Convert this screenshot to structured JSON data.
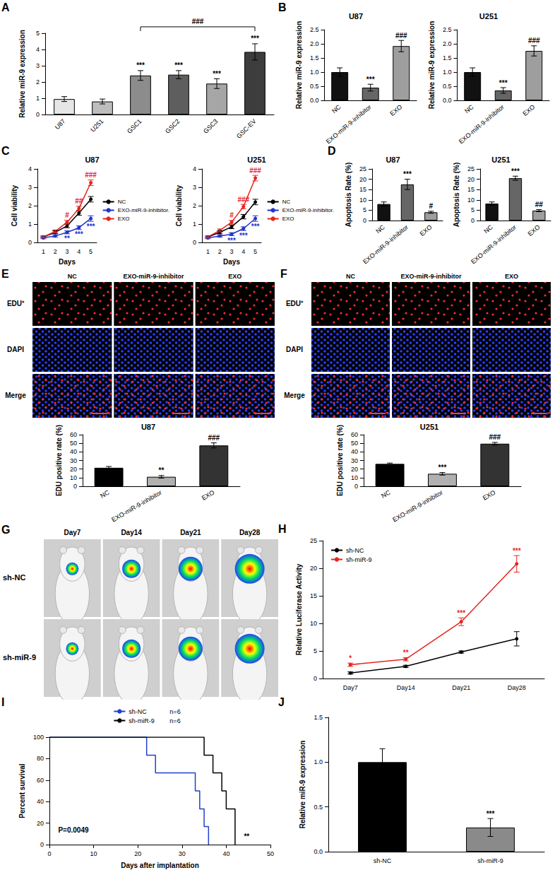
{
  "chart_data": [
    {
      "panel": "A",
      "type": "bar",
      "categories": [
        "U87",
        "U251",
        "GSC1",
        "GSC2",
        "GSC3",
        "GSC-EV"
      ],
      "values": [
        0.95,
        0.8,
        2.4,
        2.45,
        1.9,
        3.85
      ],
      "errors": [
        0.15,
        0.15,
        0.3,
        0.25,
        0.3,
        0.5
      ],
      "significance": [
        null,
        null,
        "***",
        "***",
        "***",
        "***"
      ],
      "bracket": {
        "from": "GSC1",
        "to": "GSC-EV",
        "text": "###"
      },
      "colors": [
        "#e6e6e6",
        "#bdbdbd",
        "#8c8c8c",
        "#5e5e5e",
        "#a6a6a6",
        "#3d3d3d"
      ],
      "y_label": "Relative miR-9 expression",
      "ylim": [
        0,
        5
      ],
      "yticks": [
        0,
        1,
        2,
        3,
        4,
        5
      ],
      "grid": false
    },
    {
      "panel": "B",
      "type": "bar",
      "title": "U87",
      "categories": [
        "NC",
        "EXO-miR-9-inhibitor",
        "EXO"
      ],
      "values": [
        1.0,
        0.45,
        1.92
      ],
      "errors": [
        0.15,
        0.12,
        0.2
      ],
      "significance": [
        null,
        "***",
        "###"
      ],
      "colors": [
        "#111111",
        "#666666",
        "#9e9e9e"
      ],
      "y_label": "Relative miR-9 expression",
      "ylim": [
        0,
        2.5
      ],
      "yticks": [
        {
          "value": 0,
          "label": "0.0"
        },
        0.5,
        {
          "value": 1,
          "label": "1.0"
        },
        1.5,
        {
          "value": 2,
          "label": "2.0"
        },
        2.5
      ],
      "grid": false
    },
    {
      "type": "bar",
      "title": "U251",
      "categories": [
        "NC",
        "EXO-miR-9-inhibitor",
        "EXO"
      ],
      "values": [
        1.0,
        0.35,
        1.75
      ],
      "errors": [
        0.15,
        0.1,
        0.18
      ],
      "significance": [
        null,
        "***",
        "###"
      ],
      "colors": [
        "#111111",
        "#666666",
        "#9e9e9e"
      ],
      "y_label": "Relative miR-9 expression",
      "ylim": [
        0,
        2.5
      ],
      "yticks": [
        {
          "value": 0,
          "label": "0.0"
        },
        0.5,
        {
          "value": 1,
          "label": "1.0"
        },
        1.5,
        {
          "value": 2,
          "label": "2.0"
        },
        2.5
      ],
      "grid": false
    },
    {
      "panel": "C",
      "type": "line",
      "title": "U87",
      "categories": [
        "1",
        "2",
        "3",
        "4",
        "5"
      ],
      "x_label": "Days",
      "y_label": "Cell viability",
      "ylim": [
        0,
        4
      ],
      "yticks": [
        0,
        1,
        2,
        3,
        4
      ],
      "legend": "right",
      "marker": "circle",
      "grid": false,
      "series": [
        {
          "name": "NC",
          "color": "#000000",
          "values": [
            0.3,
            0.55,
            0.9,
            1.6,
            2.35
          ],
          "errors": [
            0.05,
            0.08,
            0.1,
            0.12,
            0.15
          ]
        },
        {
          "name": "EXO-miR-9-inhibitor.",
          "color": "#2233cc",
          "values": [
            0.25,
            0.35,
            0.55,
            0.8,
            1.3
          ],
          "errors": [
            0.05,
            0.06,
            0.08,
            0.1,
            0.15
          ],
          "significance": [
            null,
            null,
            "**",
            "***",
            "***"
          ]
        },
        {
          "name": "EXO",
          "color": "#e8231f",
          "values": [
            0.3,
            0.6,
            1.1,
            1.85,
            3.25
          ],
          "errors": [
            0.05,
            0.08,
            0.1,
            0.12,
            0.15
          ],
          "significance": [
            null,
            null,
            "#",
            "##",
            "###"
          ]
        }
      ]
    },
    {
      "type": "line",
      "title": "U251",
      "categories": [
        "1",
        "2",
        "3",
        "4",
        "5"
      ],
      "x_label": "Days",
      "y_label": "Cell viability",
      "ylim": [
        0,
        4
      ],
      "yticks": [
        0,
        1,
        2,
        3,
        4
      ],
      "legend": "right",
      "marker": "circle",
      "grid": false,
      "series": [
        {
          "name": "NC",
          "color": "#000000",
          "values": [
            0.3,
            0.55,
            0.85,
            1.4,
            2.2
          ],
          "errors": [
            0.05,
            0.08,
            0.1,
            0.12,
            0.15
          ]
        },
        {
          "name": "EXO-miR-9-inhibitor.",
          "color": "#2233cc",
          "values": [
            0.25,
            0.35,
            0.45,
            0.75,
            1.3
          ],
          "errors": [
            0.05,
            0.06,
            0.08,
            0.1,
            0.15
          ],
          "significance": [
            null,
            null,
            "***",
            "***",
            "***"
          ]
        },
        {
          "name": "EXO",
          "color": "#e8231f",
          "values": [
            0.3,
            0.65,
            1.1,
            1.95,
            3.5
          ],
          "errors": [
            0.05,
            0.08,
            0.1,
            0.12,
            0.15
          ],
          "significance": [
            null,
            null,
            "#",
            "###",
            "###"
          ]
        }
      ]
    },
    {
      "panel": "D",
      "type": "bar",
      "title": "U87",
      "categories": [
        "NC",
        "EXO-miR-9-inhibitor",
        "EXO"
      ],
      "values": [
        8,
        17.5,
        4
      ],
      "errors": [
        1,
        2.5,
        0.5
      ],
      "significance": [
        null,
        "***",
        "#"
      ],
      "colors": [
        "#111111",
        "#666666",
        "#9e9e9e"
      ],
      "y_label": "Apoptosis Rate (%)",
      "ylim": [
        0,
        25
      ],
      "yticks": [
        0,
        5,
        10,
        15,
        20,
        25
      ],
      "grid": false
    },
    {
      "type": "bar",
      "title": "U251",
      "categories": [
        "NC",
        "EXO-miR-9-inhibitor",
        "EXO"
      ],
      "values": [
        8.2,
        20.5,
        4.8
      ],
      "errors": [
        0.8,
        1,
        0.5
      ],
      "significance": [
        null,
        "***",
        "##"
      ],
      "colors": [
        "#111111",
        "#666666",
        "#9e9e9e"
      ],
      "y_label": "Apoptosis Rate (%)",
      "ylim": [
        0,
        25
      ],
      "yticks": [
        0,
        5,
        10,
        15,
        20,
        25
      ],
      "grid": false
    },
    {
      "type": "bar",
      "title": "U87",
      "categories": [
        "NC",
        "EXO-miR-9-inhibitor",
        "EXO"
      ],
      "values": [
        21.5,
        11,
        47.5
      ],
      "errors": [
        1.5,
        1.5,
        3
      ],
      "significance": [
        null,
        "**",
        "###"
      ],
      "colors": [
        "#000000",
        "#b0b0b0",
        "#333333"
      ],
      "y_label": "EDU positive rate (%)",
      "ylim": [
        0,
        60
      ],
      "yticks": [
        0,
        10,
        20,
        30,
        40,
        50,
        60
      ],
      "grid": false
    },
    {
      "type": "bar",
      "title": "U251",
      "categories": [
        "NC",
        "EXO-miR-9-inhibitor",
        "EXO"
      ],
      "values": [
        26,
        14.5,
        49.5
      ],
      "errors": [
        1,
        1.5,
        1.5
      ],
      "significance": [
        null,
        "***",
        "###"
      ],
      "colors": [
        "#000000",
        "#b0b0b0",
        "#333333"
      ],
      "y_label": "EDU positive rate (%)",
      "ylim": [
        0,
        60
      ],
      "yticks": [
        0,
        10,
        20,
        30,
        40,
        50,
        60
      ],
      "grid": false
    },
    {
      "panel": "H",
      "type": "line",
      "categories": [
        "Day7",
        "Day14",
        "Day21",
        "Day28"
      ],
      "y_label": "Relative Luciferase Activity",
      "ylim": [
        0,
        25
      ],
      "yticks": [
        0,
        5,
        10,
        15,
        20,
        25
      ],
      "legend": "top-left",
      "marker": "circle",
      "grid": false,
      "series": [
        {
          "name": "sh-NC",
          "color": "#000000",
          "values": [
            1,
            2.2,
            4.8,
            7.2
          ],
          "errors": [
            0.2,
            0.2,
            0.2,
            1.3
          ]
        },
        {
          "name": "sh-miR-9",
          "color": "#e8231f",
          "values": [
            2.5,
            3.5,
            10.3,
            20.8
          ],
          "errors": [
            0.3,
            0.3,
            0.7,
            1.5
          ],
          "significance": [
            "*",
            "**",
            "***",
            "***"
          ]
        }
      ]
    },
    {
      "panel": "I",
      "type": "line",
      "line_style": "step",
      "x_label": "Days after implantation",
      "y_label": "Percent survival",
      "xlim": [
        0,
        50
      ],
      "xticks": [
        0,
        10,
        20,
        30,
        40,
        50
      ],
      "ylim": [
        0,
        100
      ],
      "yticks": [
        0,
        20,
        40,
        60,
        80,
        100
      ],
      "legend": "top",
      "grid": false,
      "series": [
        {
          "name": "sh-NC",
          "legend_note": "n=6",
          "color": "#2040d0",
          "x": [
            0,
            22,
            24,
            33,
            34,
            35,
            36
          ],
          "values": [
            100,
            83.3,
            66.7,
            50,
            33.3,
            16.7,
            0
          ]
        },
        {
          "name": "sh-miR-9",
          "legend_note": "n=6",
          "color": "#000000",
          "x": [
            0,
            35,
            37,
            39,
            40,
            42
          ],
          "values": [
            100,
            83.3,
            66.7,
            50,
            33.3,
            0
          ]
        }
      ],
      "annotations": [
        {
          "text": "P=0.0049",
          "x": 2,
          "y": 10
        },
        {
          "text": "**",
          "x": 44,
          "y": 4
        }
      ]
    },
    {
      "panel": "J",
      "type": "bar",
      "categories": [
        "sh-NC",
        "sh-miR-9"
      ],
      "values": [
        1.0,
        0.27
      ],
      "errors": [
        0.15,
        0.1
      ],
      "significance": [
        null,
        "***"
      ],
      "colors": [
        "#000000",
        "#8a8a8a"
      ],
      "y_label": "Relative miR-9 expression",
      "ylim": [
        0,
        1.5
      ],
      "yticks": [
        {
          "value": 0,
          "label": "0.0"
        },
        0.5,
        {
          "value": 1,
          "label": "1.0"
        },
        1.5
      ],
      "grid": false
    }
  ],
  "image_panels": [
    {
      "panel": "E",
      "type": "microscopy",
      "columns": [
        "NC",
        "EXO-miR-9-inhibitor",
        "EXO"
      ],
      "rows": [
        "EDU⁺",
        "DAPI",
        "Merge"
      ]
    },
    {
      "panel": "F",
      "type": "microscopy",
      "columns": [
        "NC",
        "EXO-miR-9-inhibitor",
        "EXO"
      ],
      "rows": [
        "EDU⁺",
        "DAPI",
        "Merge"
      ]
    },
    {
      "panel": "G",
      "type": "bioluminescence",
      "columns": [
        "Day7",
        "Day14",
        "Day21",
        "Day28"
      ],
      "rows": [
        "sh-NC",
        "sh-miR-9"
      ]
    }
  ]
}
